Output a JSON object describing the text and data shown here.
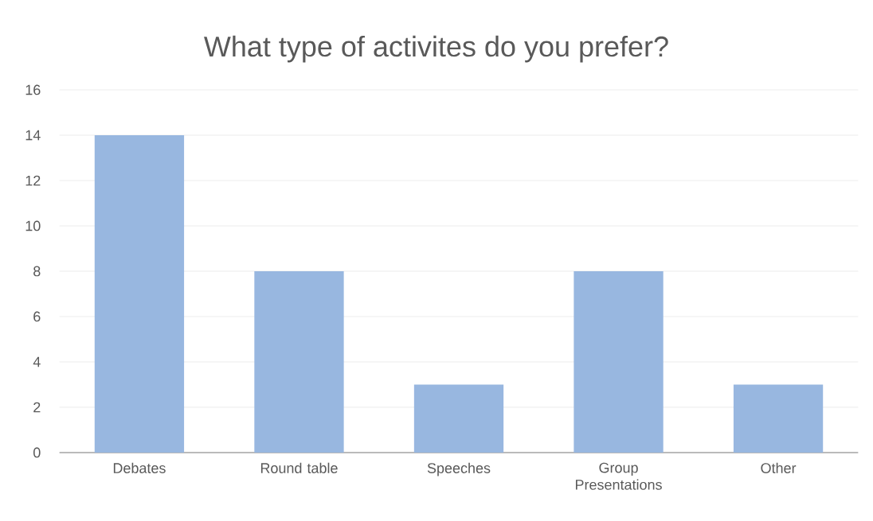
{
  "chart_data": {
    "type": "bar",
    "title": "What type of activites do you prefer?",
    "categories": [
      "Debates",
      "Round table",
      "Speeches",
      "Group Presentations",
      "Other"
    ],
    "values": [
      14,
      8,
      3,
      8,
      3
    ],
    "color": "#98b7e0",
    "ylim": [
      0,
      16
    ],
    "yticks": [
      0,
      2,
      4,
      6,
      8,
      10,
      12,
      14,
      16
    ],
    "grid": "y"
  }
}
